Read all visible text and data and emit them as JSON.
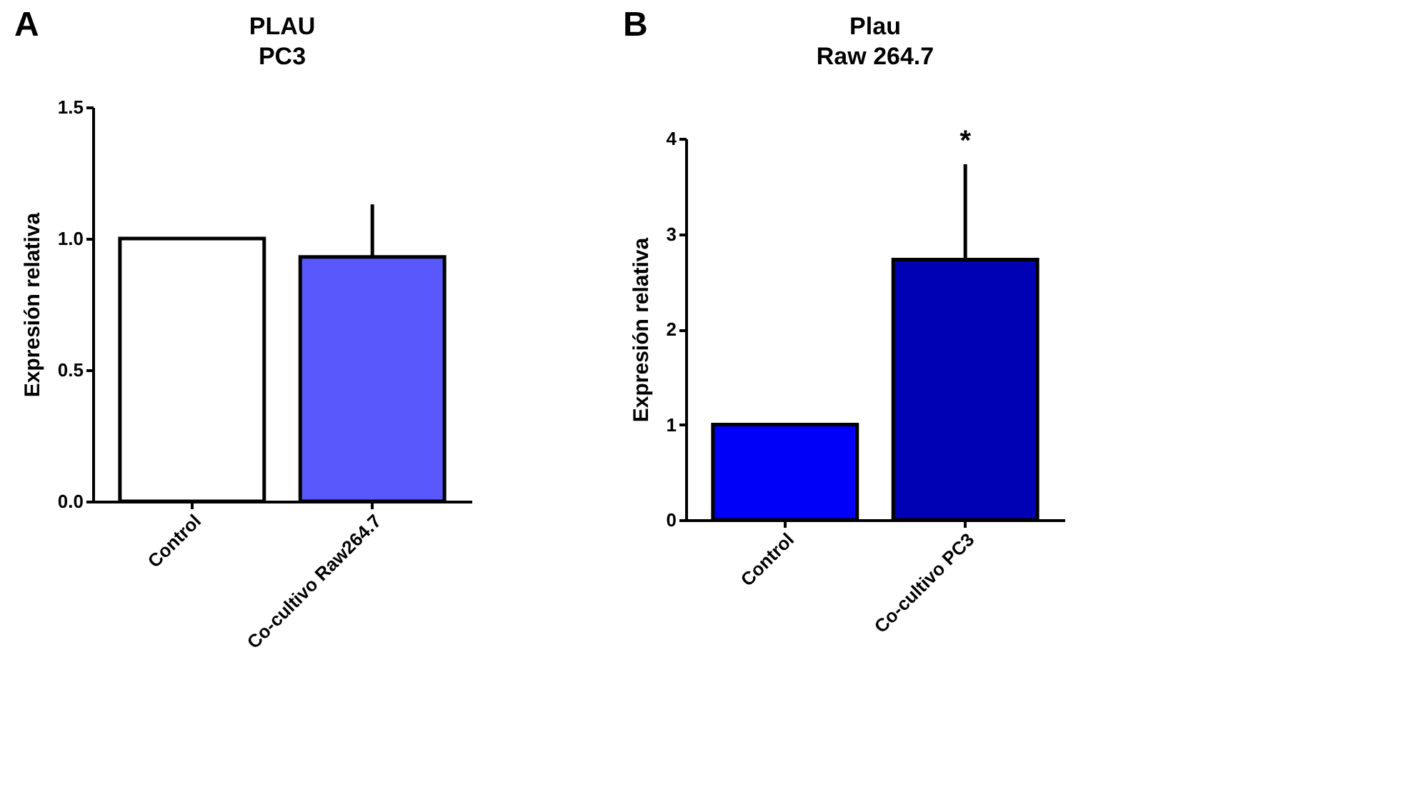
{
  "chart_data": [
    {
      "type": "bar",
      "title": "PLAU\nPC3",
      "ylabel": "Expresión relativa",
      "categories": [
        "Control",
        "Co-cultivo Raw264.7"
      ],
      "values": [
        1.0,
        0.93
      ],
      "colors": [
        "#ffffff",
        "#5858fc"
      ],
      "errors": [
        null,
        [
          0.93,
          1.13
        ]
      ],
      "ylim": [
        0,
        1.5
      ],
      "yticks": [
        {
          "value": 0,
          "label": "0.0"
        },
        0.5,
        {
          "value": 1,
          "label": "1.0"
        },
        1.5
      ],
      "grid": false,
      "annotations": [
        "A"
      ]
    },
    {
      "type": "bar",
      "title": "Plau\nRaw 264.7",
      "ylabel": "Expresión relativa",
      "categories": [
        "Control",
        "Co-cultivo PC3"
      ],
      "values": [
        1.0,
        2.73
      ],
      "colors": [
        "#0000fa",
        "#0000b4"
      ],
      "errors": [
        null,
        [
          2.73,
          3.73
        ]
      ],
      "ylim": [
        0,
        4
      ],
      "yticks": [
        0,
        1,
        2,
        3,
        4
      ],
      "grid": false,
      "annotations": [
        "B",
        {
          "text": "*",
          "x": "Co-cultivo PC3",
          "y": 3.73
        }
      ]
    }
  ]
}
